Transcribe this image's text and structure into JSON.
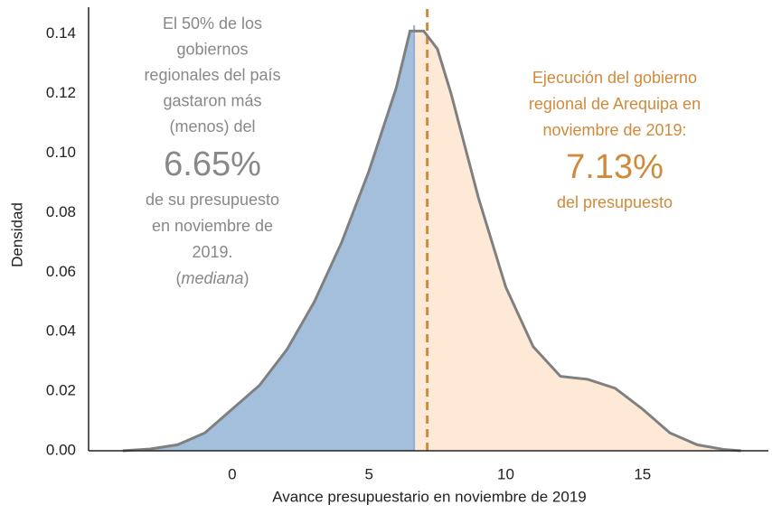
{
  "chart_data": {
    "type": "density",
    "x_label": "Avance presupuestario en noviembre de 2019",
    "y_label": "Densidad",
    "x": [
      -4,
      -3,
      -2,
      -1,
      0,
      1,
      2,
      3,
      4,
      5,
      6,
      6.5,
      7,
      7.5,
      8,
      9,
      10,
      11,
      12,
      13,
      14,
      15,
      16,
      17,
      18,
      18.6
    ],
    "y": [
      0,
      0.0006,
      0.002,
      0.006,
      0.014,
      0.022,
      0.034,
      0.05,
      0.07,
      0.094,
      0.122,
      0.141,
      0.141,
      0.135,
      0.12,
      0.085,
      0.055,
      0.035,
      0.025,
      0.024,
      0.021,
      0.014,
      0.006,
      0.002,
      0.0004,
      0
    ],
    "line_color": "#808080",
    "left_fill_color": "#a3bfdb",
    "right_fill_color": "#fde9d6",
    "xlim": [
      -5.25,
      19.6
    ],
    "ylim": [
      0,
      0.149
    ],
    "xticks": [
      0,
      5,
      10,
      15
    ],
    "yticks": [
      {
        "value": 0,
        "label": "0.00"
      },
      0.02,
      0.04,
      0.06,
      0.08,
      {
        "value": 0.1,
        "label": "0.10"
      },
      0.12,
      0.14
    ],
    "median": {
      "value": 6.65,
      "label": "6.65%",
      "color": "#8fb0d8"
    },
    "median_note_before": [
      "El 50% de los",
      "gobiernos",
      "regionales del país",
      "gastaron más",
      "(menos) del"
    ],
    "median_note_after": [
      "de su presupuesto",
      "en noviembre de",
      "2019."
    ],
    "median_note_last": [
      "(",
      "mediana",
      ")"
    ],
    "reference": {
      "value": 7.13,
      "label": "7.13%",
      "color": "#d08a3c"
    },
    "reference_note_before": [
      "Ejecución del gobierno",
      "regional de Arequipa en",
      "noviembre de 2019:"
    ],
    "reference_note_after": [
      "del presupuesto"
    ]
  }
}
